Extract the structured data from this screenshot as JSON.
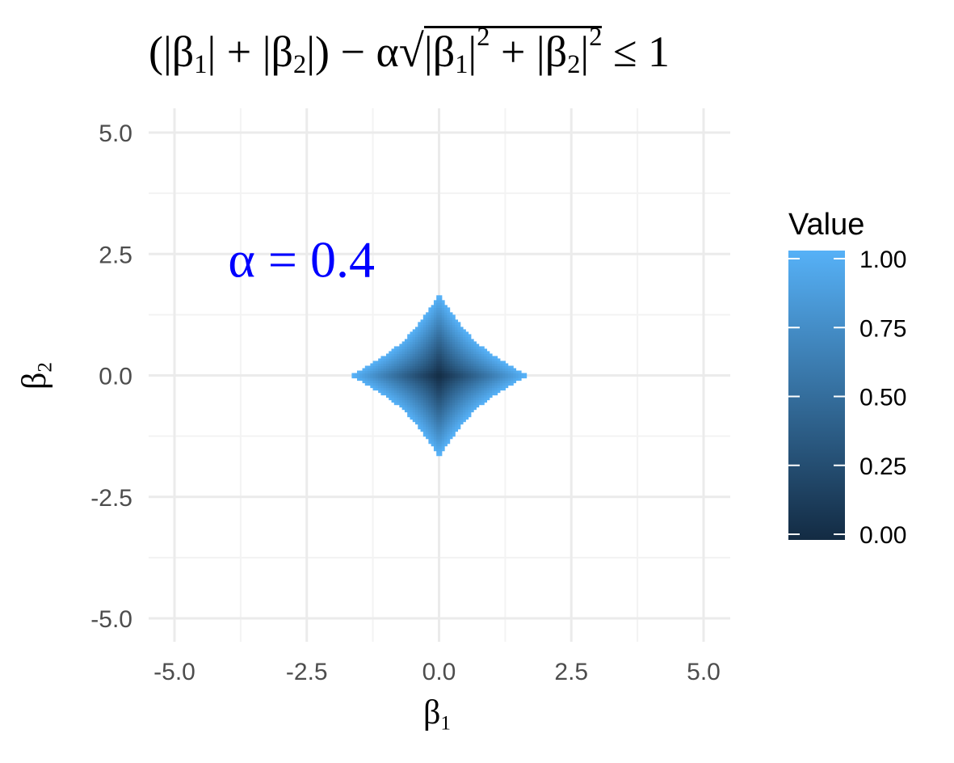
{
  "title": {
    "prefix": "(|β",
    "s1": "1",
    "mid1": "| + |β",
    "s2": "2",
    "mid2": "|) − α",
    "r_pre1": "|β",
    "r_s1": "1",
    "r_mid": "|",
    "r_p1": "2",
    "r_plus": " + |β",
    "r_s2": "2",
    "r_end": "|",
    "r_p2": "2",
    "suffix": " ≤ 1"
  },
  "axes": {
    "x_title_base": "β",
    "x_title_sub": "1",
    "y_title_base": "β",
    "y_title_sub": "2"
  },
  "colors": {
    "low": "#132B43",
    "high": "#56B1F7",
    "grid_major": "#ebebeb",
    "grid_minor": "#f3f3f3",
    "annotation": "#0000ff"
  },
  "chart_data": {
    "type": "heatmap",
    "xlim": [
      -5.0,
      5.0
    ],
    "ylim": [
      -5.0,
      5.0
    ],
    "x_ticks": [
      -5.0,
      -2.5,
      0.0,
      2.5,
      5.0
    ],
    "y_ticks": [
      -5.0,
      -2.5,
      0.0,
      2.5,
      5.0
    ],
    "x_tick_labels": [
      "-5.0",
      "-2.5",
      "0.0",
      "2.5",
      "5.0"
    ],
    "y_tick_labels": [
      "-5.0",
      "-2.5",
      "0.0",
      "2.5",
      "5.0"
    ],
    "grid": true,
    "alpha": 0.4,
    "annotation": {
      "text": "α = 0.4",
      "x": -2.6,
      "y": 2.4
    },
    "region": "(|β1| + |β2|) − α·sqrt(|β1|² + |β2|²) ≤ 1",
    "legend": {
      "title": "Value",
      "position": "right",
      "min": 0.0,
      "max": 1.0,
      "breaks": [
        0.0,
        0.25,
        0.5,
        0.75,
        1.0
      ],
      "labels": [
        "0.00",
        "0.25",
        "0.50",
        "0.75",
        "1.00"
      ]
    }
  }
}
